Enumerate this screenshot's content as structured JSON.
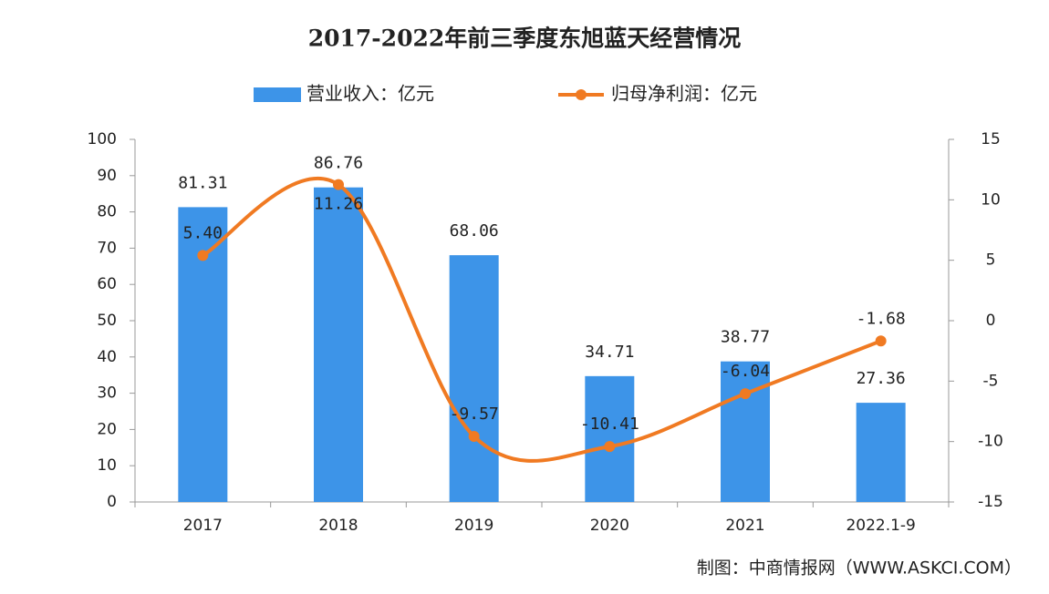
{
  "chart_data": {
    "type": "bar",
    "title": "2017-2022年前三季度东旭蓝天经营情况",
    "categories": [
      "2017",
      "2018",
      "2019",
      "2020",
      "2021",
      "2022.1-9"
    ],
    "series": [
      {
        "name": "营业收入：亿元",
        "type": "bar",
        "color": "#3d94e8",
        "values": [
          81.31,
          86.76,
          68.06,
          34.71,
          38.77,
          27.36
        ]
      },
      {
        "name": "归母净利润：亿元",
        "type": "line",
        "axis": "y2",
        "color": "#f07a22",
        "values": [
          5.4,
          11.26,
          -9.57,
          -10.41,
          -6.04,
          -1.68
        ],
        "value_labels": [
          "5.40",
          "11.26",
          "-9.57",
          "-10.41",
          "-6.04",
          "-1.68"
        ]
      }
    ],
    "ylim": [
      0,
      100
    ],
    "yticks": [
      0,
      10,
      20,
      30,
      40,
      50,
      60,
      70,
      80,
      90,
      100
    ],
    "y2lim": [
      -15,
      15
    ],
    "y2ticks": [
      -15,
      -10,
      -5,
      0,
      5,
      10,
      15
    ],
    "grid": false,
    "source": "制图：中商情报网（WWW.ASKCI.COM）"
  }
}
